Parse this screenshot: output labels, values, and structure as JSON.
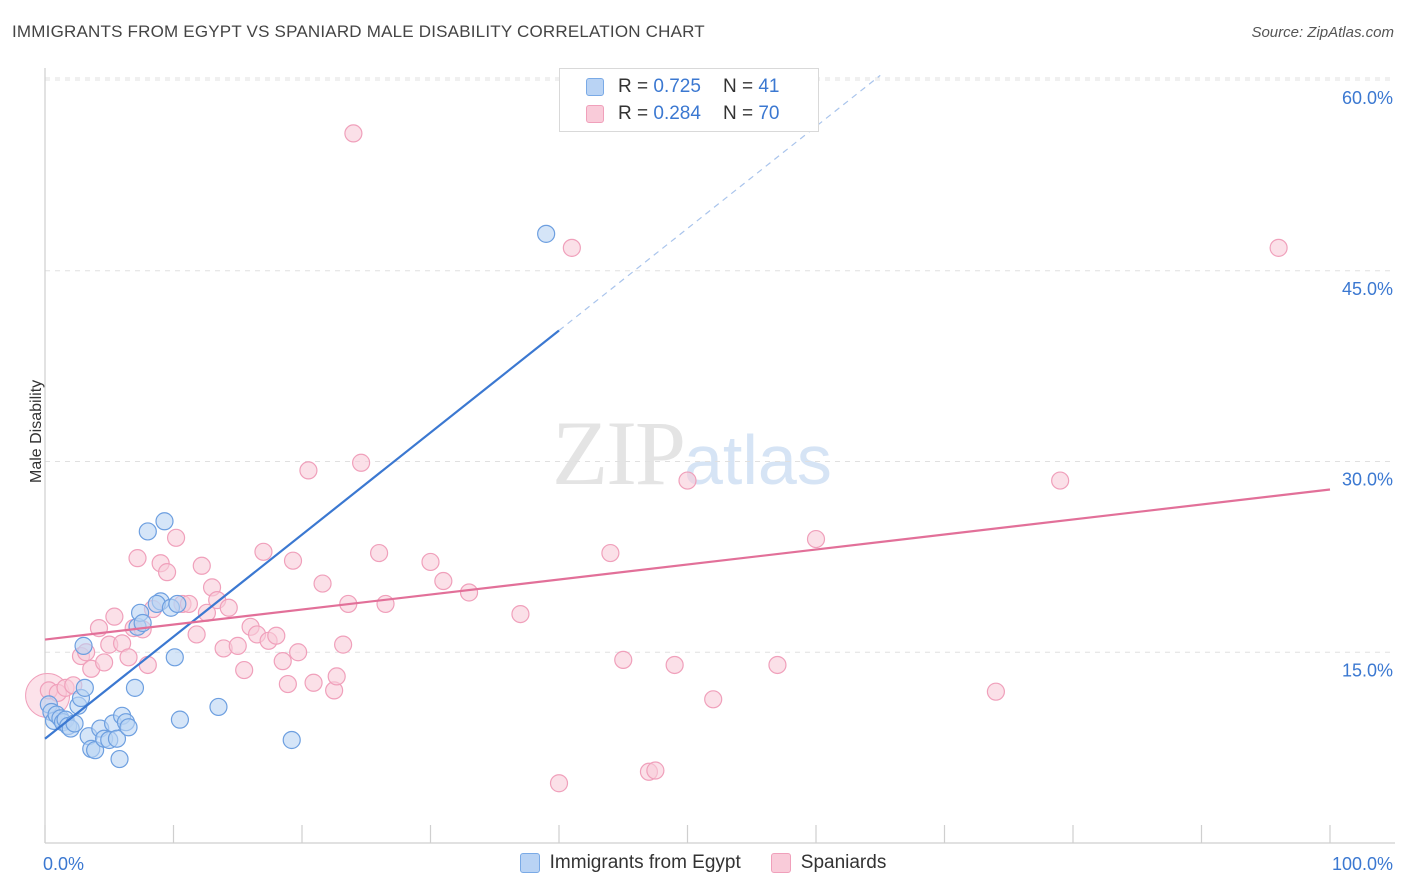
{
  "title": "IMMIGRANTS FROM EGYPT VS SPANIARD MALE DISABILITY CORRELATION CHART",
  "source": "Source: ZipAtlas.com",
  "watermark": {
    "zip": "ZIP",
    "atlas": "atlas"
  },
  "legend": {
    "r_label": "R =",
    "n_label": "N =",
    "rows": [
      {
        "r": "0.725",
        "n": "41",
        "color": "#7aaae6",
        "fill": "#b9d3f4"
      },
      {
        "r": "0.284",
        "n": "70",
        "color": "#f0a0bb",
        "fill": "#f9cbd9"
      }
    ]
  },
  "bottom_legend": [
    "Immigrants from Egypt",
    "Spaniards"
  ],
  "chart_data": {
    "type": "scatter",
    "title": "IMMIGRANTS FROM EGYPT VS SPANIARD MALE DISABILITY CORRELATION CHART",
    "xlabel": "",
    "ylabel": "Male Disability",
    "xlim": [
      0,
      100
    ],
    "ylim": [
      0,
      60
    ],
    "x_tick_labels": [
      "0.0%",
      "100.0%"
    ],
    "y_ticks": [
      15,
      30,
      45,
      60
    ],
    "y_tick_labels": [
      "15.0%",
      "30.0%",
      "45.0%",
      "60.0%"
    ],
    "grid": "horizontal dashed",
    "legend_placement": "top-center",
    "series": [
      {
        "name": "Immigrants from Egypt",
        "color": "#3b78d1",
        "fill": "#b9d3f4",
        "r": 0.725,
        "n": 41,
        "trend": {
          "x0": 0,
          "y0": 8.2,
          "x1": 40,
          "y1": 40.3,
          "dash_to_x": 65
        },
        "points": [
          [
            0.3,
            10.9
          ],
          [
            0.5,
            10.3
          ],
          [
            0.7,
            9.6
          ],
          [
            0.9,
            10.1
          ],
          [
            1.2,
            9.8
          ],
          [
            1.4,
            9.5
          ],
          [
            1.6,
            9.7
          ],
          [
            1.8,
            9.2
          ],
          [
            2.0,
            9.0
          ],
          [
            2.3,
            9.4
          ],
          [
            2.6,
            10.8
          ],
          [
            2.8,
            11.4
          ],
          [
            3.1,
            12.2
          ],
          [
            3.0,
            15.5
          ],
          [
            3.4,
            8.4
          ],
          [
            3.6,
            7.4
          ],
          [
            3.9,
            7.3
          ],
          [
            4.3,
            9.0
          ],
          [
            4.6,
            8.2
          ],
          [
            5.0,
            8.1
          ],
          [
            5.3,
            9.4
          ],
          [
            5.6,
            8.2
          ],
          [
            5.8,
            6.6
          ],
          [
            6.0,
            10.0
          ],
          [
            6.3,
            9.5
          ],
          [
            6.5,
            9.1
          ],
          [
            7.0,
            12.2
          ],
          [
            7.2,
            17.0
          ],
          [
            7.4,
            18.1
          ],
          [
            7.6,
            17.3
          ],
          [
            8.0,
            24.5
          ],
          [
            9.0,
            19.0
          ],
          [
            9.3,
            25.3
          ],
          [
            8.7,
            18.8
          ],
          [
            9.8,
            18.5
          ],
          [
            10.3,
            18.8
          ],
          [
            10.1,
            14.6
          ],
          [
            10.5,
            9.7
          ],
          [
            13.5,
            10.7
          ],
          [
            19.2,
            8.1
          ],
          [
            39.0,
            47.9
          ]
        ]
      },
      {
        "name": "Spaniards",
        "color": "#e27099",
        "fill": "#f9cbd9",
        "r": 0.284,
        "n": 70,
        "trend": {
          "x0": 0,
          "y0": 16.0,
          "x1": 100,
          "y1": 27.8
        },
        "points": [
          [
            0.3,
            12.0
          ],
          [
            1.0,
            11.8
          ],
          [
            1.6,
            12.2
          ],
          [
            2.2,
            12.4
          ],
          [
            2.8,
            14.7
          ],
          [
            3.2,
            15.0
          ],
          [
            3.6,
            13.7
          ],
          [
            4.2,
            16.9
          ],
          [
            4.6,
            14.2
          ],
          [
            5.0,
            15.6
          ],
          [
            5.4,
            17.8
          ],
          [
            6.0,
            15.7
          ],
          [
            6.5,
            14.6
          ],
          [
            6.9,
            16.9
          ],
          [
            7.2,
            22.4
          ],
          [
            7.6,
            16.8
          ],
          [
            8.0,
            14.0
          ],
          [
            8.4,
            18.4
          ],
          [
            9.0,
            22.0
          ],
          [
            9.5,
            21.3
          ],
          [
            10.2,
            24.0
          ],
          [
            10.7,
            18.8
          ],
          [
            11.2,
            18.8
          ],
          [
            11.8,
            16.4
          ],
          [
            12.2,
            21.8
          ],
          [
            12.6,
            18.1
          ],
          [
            13.0,
            20.1
          ],
          [
            13.4,
            19.1
          ],
          [
            13.9,
            15.3
          ],
          [
            14.3,
            18.5
          ],
          [
            15.0,
            15.5
          ],
          [
            15.5,
            13.6
          ],
          [
            16.0,
            17.0
          ],
          [
            16.5,
            16.4
          ],
          [
            17.0,
            22.9
          ],
          [
            17.4,
            15.9
          ],
          [
            18.0,
            16.3
          ],
          [
            18.5,
            14.3
          ],
          [
            18.9,
            12.5
          ],
          [
            19.3,
            22.2
          ],
          [
            19.7,
            15.0
          ],
          [
            20.5,
            29.3
          ],
          [
            20.9,
            12.6
          ],
          [
            21.6,
            20.4
          ],
          [
            22.5,
            12.0
          ],
          [
            22.7,
            13.1
          ],
          [
            23.2,
            15.6
          ],
          [
            23.6,
            18.8
          ],
          [
            24.0,
            55.8
          ],
          [
            24.6,
            29.9
          ],
          [
            26.0,
            22.8
          ],
          [
            26.5,
            18.8
          ],
          [
            30.0,
            22.1
          ],
          [
            31.0,
            20.6
          ],
          [
            33.0,
            19.7
          ],
          [
            37.0,
            18.0
          ],
          [
            41.0,
            46.8
          ],
          [
            44.0,
            22.8
          ],
          [
            45.0,
            14.4
          ],
          [
            47.0,
            5.6
          ],
          [
            47.5,
            5.7
          ],
          [
            49.0,
            14.0
          ],
          [
            50.0,
            28.5
          ],
          [
            52.0,
            11.3
          ],
          [
            57.0,
            14.0
          ],
          [
            60.0,
            23.9
          ],
          [
            74.0,
            11.9
          ],
          [
            79.0,
            28.5
          ],
          [
            96.0,
            46.8
          ],
          [
            40.0,
            4.7
          ]
        ]
      }
    ]
  }
}
